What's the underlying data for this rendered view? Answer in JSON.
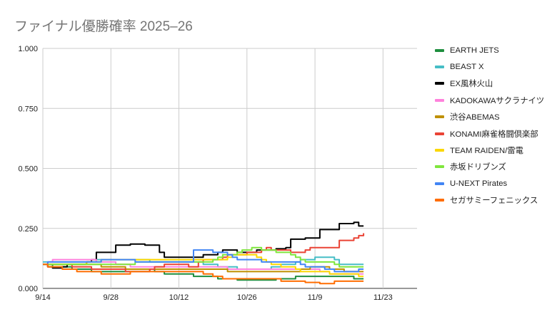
{
  "chart_data": {
    "type": "line",
    "title": "ファイナル優勝確率 2025–26",
    "xlabel": "",
    "ylabel": "",
    "x_range": [
      "2025-09-14",
      "2025-11-30"
    ],
    "ylim": [
      0,
      1
    ],
    "x_ticks": [
      "9/14",
      "9/28",
      "10/12",
      "10/26",
      "11/9",
      "11/23"
    ],
    "y_ticks": [
      "0.000",
      "0.250",
      "0.500",
      "0.750",
      "1.000"
    ],
    "grid": true,
    "legend_position": "right",
    "dates": [
      "2025-09-14",
      "2025-09-15",
      "2025-09-16",
      "2025-09-17",
      "2025-09-18",
      "2025-09-19",
      "2025-09-20",
      "2025-09-21",
      "2025-09-22",
      "2025-09-23",
      "2025-09-24",
      "2025-09-25",
      "2025-09-26",
      "2025-09-27",
      "2025-09-28",
      "2025-09-29",
      "2025-09-30",
      "2025-10-01",
      "2025-10-02",
      "2025-10-03",
      "2025-10-04",
      "2025-10-05",
      "2025-10-06",
      "2025-10-07",
      "2025-10-08",
      "2025-10-09",
      "2025-10-10",
      "2025-10-11",
      "2025-10-12",
      "2025-10-13",
      "2025-10-14",
      "2025-10-15",
      "2025-10-16",
      "2025-10-17",
      "2025-10-18",
      "2025-10-19",
      "2025-10-20",
      "2025-10-21",
      "2025-10-22",
      "2025-10-23",
      "2025-10-24",
      "2025-10-25",
      "2025-10-26",
      "2025-10-27",
      "2025-10-28",
      "2025-10-29",
      "2025-10-30",
      "2025-10-31",
      "2025-11-01",
      "2025-11-02",
      "2025-11-03",
      "2025-11-04",
      "2025-11-05",
      "2025-11-06",
      "2025-11-07",
      "2025-11-08",
      "2025-11-09",
      "2025-11-10",
      "2025-11-11",
      "2025-11-12",
      "2025-11-13",
      "2025-11-14",
      "2025-11-15",
      "2025-11-16",
      "2025-11-17",
      "2025-11-18",
      "2025-11-19"
    ],
    "series": [
      {
        "name": "EARTH JETS",
        "color": "#1e8e3e",
        "values": [
          0.1,
          0.1,
          0.09,
          0.09,
          0.09,
          0.09,
          0.08,
          0.08,
          0.08,
          0.08,
          0.07,
          0.07,
          0.07,
          0.07,
          0.07,
          0.07,
          0.07,
          0.07,
          0.07,
          0.07,
          0.07,
          0.07,
          0.08,
          0.07,
          0.07,
          0.06,
          0.06,
          0.06,
          0.06,
          0.06,
          0.06,
          0.05,
          0.05,
          0.05,
          0.05,
          0.05,
          0.04,
          0.04,
          0.04,
          0.04,
          0.035,
          0.035,
          0.035,
          0.035,
          0.035,
          0.035,
          0.035,
          0.035,
          0.04,
          0.04,
          0.04,
          0.04,
          0.05,
          0.05,
          0.05,
          0.05,
          0.05,
          0.05,
          0.05,
          0.05,
          0.05,
          0.05,
          0.05,
          0.05,
          0.04,
          0.04,
          0.04
        ]
      },
      {
        "name": "BEAST X",
        "color": "#46bdc6",
        "values": [
          0.11,
          0.11,
          0.11,
          0.11,
          0.11,
          0.11,
          0.11,
          0.11,
          0.11,
          0.11,
          0.11,
          0.12,
          0.12,
          0.12,
          0.12,
          0.12,
          0.12,
          0.12,
          0.12,
          0.12,
          0.12,
          0.12,
          0.11,
          0.11,
          0.11,
          0.11,
          0.11,
          0.11,
          0.11,
          0.11,
          0.11,
          0.11,
          0.11,
          0.1,
          0.1,
          0.1,
          0.09,
          0.09,
          0.09,
          0.09,
          0.08,
          0.08,
          0.08,
          0.08,
          0.08,
          0.08,
          0.08,
          0.09,
          0.09,
          0.1,
          0.1,
          0.1,
          0.11,
          0.12,
          0.12,
          0.12,
          0.13,
          0.13,
          0.13,
          0.13,
          0.12,
          0.1,
          0.1,
          0.1,
          0.1,
          0.1,
          0.1
        ]
      },
      {
        "name": "EX風林火山",
        "color": "#000000",
        "values": [
          0.1,
          0.09,
          0.085,
          0.085,
          0.09,
          0.1,
          0.1,
          0.1,
          0.1,
          0.11,
          0.12,
          0.15,
          0.15,
          0.15,
          0.15,
          0.18,
          0.18,
          0.18,
          0.185,
          0.185,
          0.185,
          0.18,
          0.18,
          0.18,
          0.15,
          0.13,
          0.13,
          0.13,
          0.13,
          0.13,
          0.13,
          0.13,
          0.13,
          0.14,
          0.14,
          0.14,
          0.15,
          0.16,
          0.16,
          0.16,
          0.15,
          0.15,
          0.15,
          0.15,
          0.16,
          0.16,
          0.16,
          0.16,
          0.165,
          0.165,
          0.17,
          0.205,
          0.205,
          0.205,
          0.21,
          0.21,
          0.21,
          0.245,
          0.245,
          0.245,
          0.245,
          0.27,
          0.27,
          0.27,
          0.275,
          0.26,
          0.26
        ]
      },
      {
        "name": "KADOKAWAサクラナイツ",
        "color": "#ff82dc",
        "values": [
          0.1,
          0.11,
          0.12,
          0.12,
          0.12,
          0.12,
          0.12,
          0.12,
          0.12,
          0.12,
          0.12,
          0.11,
          0.11,
          0.11,
          0.11,
          0.1,
          0.1,
          0.1,
          0.09,
          0.09,
          0.09,
          0.09,
          0.09,
          0.09,
          0.09,
          0.09,
          0.09,
          0.09,
          0.09,
          0.09,
          0.09,
          0.09,
          0.09,
          0.09,
          0.09,
          0.09,
          0.09,
          0.09,
          0.08,
          0.08,
          0.08,
          0.08,
          0.08,
          0.08,
          0.08,
          0.08,
          0.08,
          0.08,
          0.08,
          0.08,
          0.08,
          0.08,
          0.08,
          0.08,
          0.08,
          0.08,
          0.08,
          0.07,
          0.07,
          0.06,
          0.06,
          0.06,
          0.06,
          0.06,
          0.06,
          0.06,
          0.06
        ]
      },
      {
        "name": "渋谷ABEMAS",
        "color": "#bf9000",
        "values": [
          0.1,
          0.1,
          0.1,
          0.1,
          0.1,
          0.1,
          0.1,
          0.1,
          0.1,
          0.1,
          0.1,
          0.1,
          0.09,
          0.09,
          0.09,
          0.09,
          0.09,
          0.08,
          0.08,
          0.08,
          0.08,
          0.08,
          0.08,
          0.08,
          0.08,
          0.08,
          0.08,
          0.08,
          0.08,
          0.08,
          0.08,
          0.08,
          0.08,
          0.08,
          0.08,
          0.08,
          0.08,
          0.08,
          0.07,
          0.07,
          0.07,
          0.07,
          0.07,
          0.07,
          0.07,
          0.07,
          0.07,
          0.07,
          0.07,
          0.07,
          0.07,
          0.07,
          0.07,
          0.08,
          0.08,
          0.09,
          0.09,
          0.09,
          0.09,
          0.08,
          0.08,
          0.08,
          0.07,
          0.07,
          0.07,
          0.07,
          0.07
        ]
      },
      {
        "name": "KONAMI麻雀格闘倶楽部",
        "color": "#ea4335",
        "values": [
          0.1,
          0.1,
          0.1,
          0.1,
          0.1,
          0.1,
          0.09,
          0.09,
          0.09,
          0.09,
          0.08,
          0.08,
          0.08,
          0.08,
          0.08,
          0.08,
          0.08,
          0.07,
          0.07,
          0.07,
          0.07,
          0.07,
          0.08,
          0.09,
          0.09,
          0.1,
          0.1,
          0.1,
          0.1,
          0.1,
          0.09,
          0.09,
          0.11,
          0.12,
          0.12,
          0.12,
          0.12,
          0.13,
          0.14,
          0.14,
          0.14,
          0.14,
          0.15,
          0.15,
          0.15,
          0.16,
          0.17,
          0.16,
          0.16,
          0.16,
          0.16,
          0.15,
          0.15,
          0.15,
          0.16,
          0.17,
          0.17,
          0.17,
          0.17,
          0.17,
          0.17,
          0.2,
          0.2,
          0.2,
          0.21,
          0.22,
          0.23
        ]
      },
      {
        "name": "TEAM RAIDEN/雷電",
        "color": "#fbd700",
        "values": [
          0.1,
          0.1,
          0.1,
          0.1,
          0.1,
          0.1,
          0.1,
          0.1,
          0.1,
          0.11,
          0.11,
          0.11,
          0.12,
          0.12,
          0.12,
          0.12,
          0.12,
          0.12,
          0.12,
          0.12,
          0.12,
          0.12,
          0.12,
          0.12,
          0.12,
          0.12,
          0.12,
          0.12,
          0.12,
          0.12,
          0.12,
          0.12,
          0.12,
          0.12,
          0.12,
          0.12,
          0.12,
          0.12,
          0.13,
          0.14,
          0.14,
          0.14,
          0.14,
          0.14,
          0.13,
          0.12,
          0.11,
          0.1,
          0.1,
          0.09,
          0.09,
          0.09,
          0.08,
          0.07,
          0.07,
          0.07,
          0.07,
          0.07,
          0.07,
          0.06,
          0.06,
          0.06,
          0.06,
          0.06,
          0.06,
          0.05,
          0.05
        ]
      },
      {
        "name": "赤坂ドリブンズ",
        "color": "#7fe63d",
        "values": [
          0.1,
          0.1,
          0.1,
          0.1,
          0.1,
          0.1,
          0.1,
          0.1,
          0.1,
          0.1,
          0.1,
          0.1,
          0.1,
          0.1,
          0.1,
          0.1,
          0.1,
          0.1,
          0.1,
          0.11,
          0.11,
          0.11,
          0.11,
          0.11,
          0.11,
          0.11,
          0.11,
          0.11,
          0.11,
          0.11,
          0.11,
          0.11,
          0.11,
          0.11,
          0.11,
          0.12,
          0.13,
          0.14,
          0.14,
          0.14,
          0.15,
          0.16,
          0.16,
          0.17,
          0.17,
          0.16,
          0.16,
          0.16,
          0.15,
          0.15,
          0.15,
          0.14,
          0.13,
          0.12,
          0.11,
          0.11,
          0.11,
          0.11,
          0.11,
          0.11,
          0.1,
          0.09,
          0.09,
          0.09,
          0.09,
          0.09,
          0.09
        ]
      },
      {
        "name": "U-NEXT Pirates",
        "color": "#4285f4",
        "values": [
          0.1,
          0.11,
          0.11,
          0.11,
          0.11,
          0.11,
          0.11,
          0.11,
          0.11,
          0.11,
          0.11,
          0.11,
          0.12,
          0.12,
          0.12,
          0.12,
          0.12,
          0.12,
          0.12,
          0.11,
          0.11,
          0.11,
          0.11,
          0.11,
          0.11,
          0.11,
          0.11,
          0.11,
          0.11,
          0.11,
          0.11,
          0.16,
          0.16,
          0.16,
          0.16,
          0.15,
          0.15,
          0.15,
          0.14,
          0.13,
          0.12,
          0.12,
          0.12,
          0.12,
          0.12,
          0.11,
          0.11,
          0.11,
          0.11,
          0.11,
          0.11,
          0.11,
          0.11,
          0.1,
          0.09,
          0.09,
          0.09,
          0.09,
          0.08,
          0.08,
          0.07,
          0.07,
          0.07,
          0.07,
          0.07,
          0.08,
          0.08
        ]
      },
      {
        "name": "セガサミーフェニックス",
        "color": "#ff6d01",
        "values": [
          0.1,
          0.09,
          0.09,
          0.09,
          0.08,
          0.08,
          0.08,
          0.07,
          0.07,
          0.07,
          0.07,
          0.07,
          0.06,
          0.06,
          0.06,
          0.06,
          0.06,
          0.06,
          0.07,
          0.07,
          0.07,
          0.07,
          0.07,
          0.07,
          0.07,
          0.07,
          0.07,
          0.07,
          0.07,
          0.07,
          0.07,
          0.07,
          0.07,
          0.06,
          0.06,
          0.05,
          0.05,
          0.04,
          0.04,
          0.04,
          0.04,
          0.04,
          0.04,
          0.04,
          0.04,
          0.04,
          0.04,
          0.04,
          0.04,
          0.03,
          0.03,
          0.03,
          0.03,
          0.03,
          0.025,
          0.025,
          0.025,
          0.02,
          0.02,
          0.02,
          0.03,
          0.03,
          0.03,
          0.03,
          0.03,
          0.03,
          0.03
        ]
      }
    ]
  }
}
